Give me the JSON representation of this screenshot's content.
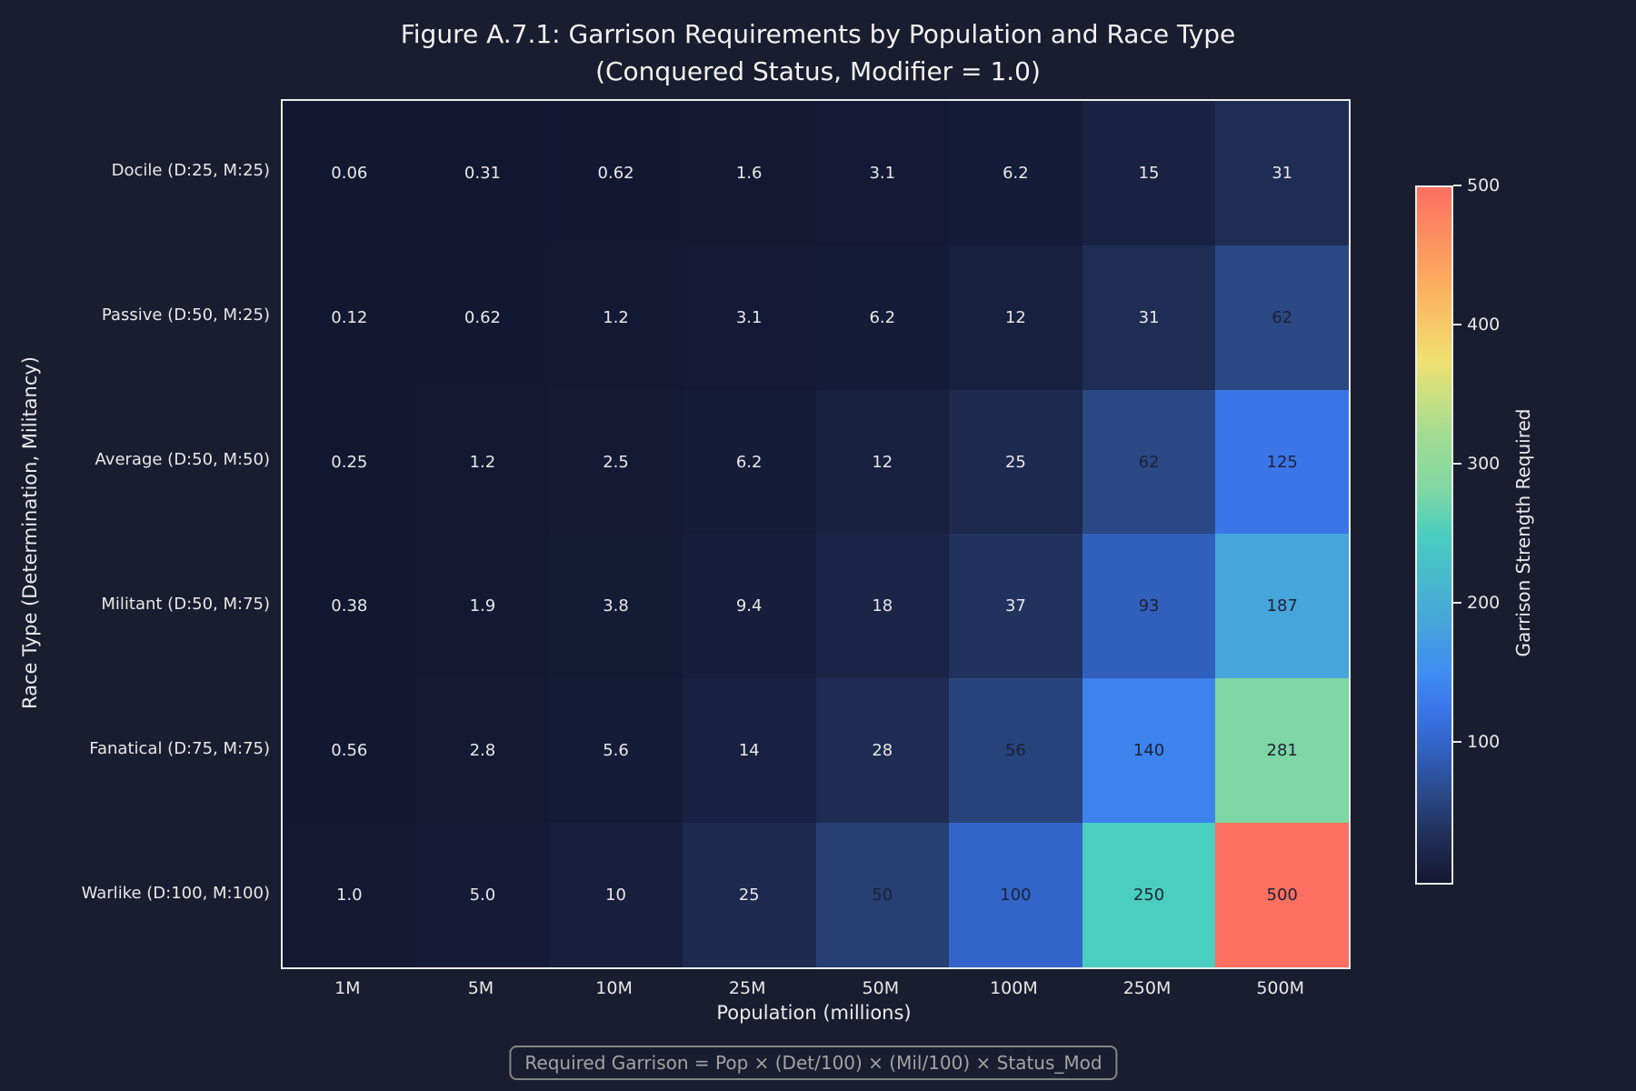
{
  "title": {
    "line1": "Figure A.7.1: Garrison Requirements by Population and Race Type",
    "line2": "(Conquered Status, Modifier = 1.0)"
  },
  "chart_data": {
    "type": "heatmap",
    "x_categories": [
      "1M",
      "5M",
      "10M",
      "25M",
      "50M",
      "100M",
      "250M",
      "500M"
    ],
    "y_categories": [
      "Docile (D:25, M:25)",
      "Passive (D:50, M:25)",
      "Average (D:50, M:50)",
      "Militant (D:50, M:75)",
      "Fanatical (D:75, M:75)",
      "Warlike (D:100, M:100)"
    ],
    "values": [
      [
        0.06,
        0.31,
        0.62,
        1.6,
        3.1,
        6.2,
        15,
        31
      ],
      [
        0.12,
        0.62,
        1.2,
        3.1,
        6.2,
        12,
        31,
        62
      ],
      [
        0.25,
        1.2,
        2.5,
        6.2,
        12,
        25,
        62,
        125
      ],
      [
        0.38,
        1.9,
        3.8,
        9.4,
        18,
        37,
        93,
        187
      ],
      [
        0.56,
        2.8,
        5.6,
        14,
        28,
        56,
        140,
        281
      ],
      [
        1.0,
        5.0,
        10,
        25,
        50,
        100,
        250,
        500
      ]
    ],
    "cell_labels": [
      [
        "0.06",
        "0.31",
        "0.62",
        "1.6",
        "3.1",
        "6.2",
        "15",
        "31"
      ],
      [
        "0.12",
        "0.62",
        "1.2",
        "3.1",
        "6.2",
        "12",
        "31",
        "62"
      ],
      [
        "0.25",
        "1.2",
        "2.5",
        "6.2",
        "12",
        "25",
        "62",
        "125"
      ],
      [
        "0.38",
        "1.9",
        "3.8",
        "9.4",
        "18",
        "37",
        "93",
        "187"
      ],
      [
        "0.56",
        "2.8",
        "5.6",
        "14",
        "28",
        "56",
        "140",
        "281"
      ],
      [
        "1.0",
        "5.0",
        "10",
        "25",
        "50",
        "100",
        "250",
        "500"
      ]
    ],
    "xlabel": "Population (millions)",
    "ylabel": "Race Type (Determination, Militancy)",
    "grid": false,
    "colorbar": {
      "label": "Garrison Strength Required",
      "ticks": [
        "100",
        "200",
        "300",
        "400",
        "500"
      ],
      "vmin": 0,
      "vmax": 500
    }
  },
  "footer": {
    "formula": "Required Garrison = Pop × (Det/100) × (Mil/100) × Status_Mod"
  },
  "colors": {
    "background": "#1a1d2f",
    "plot_border": "#ececec",
    "text_primary": "#f2f2f2",
    "tick_text": "#e8e8e8",
    "footer_text": "#a3a3a3",
    "footer_border": "#858585",
    "cell_text_light": "#e8e8e8",
    "cell_text_dark": "#1d2236",
    "annotation_dark_threshold": 50,
    "colormap_stops": [
      [
        0.0,
        "#131831"
      ],
      [
        0.062,
        "#1f2d55"
      ],
      [
        0.124,
        "#2a4884"
      ],
      [
        0.2,
        "#3264c9"
      ],
      [
        0.25,
        "#3a76e8"
      ],
      [
        0.3,
        "#3f8cf2"
      ],
      [
        0.374,
        "#46a5da"
      ],
      [
        0.5,
        "#49cec0"
      ],
      [
        0.562,
        "#7ed7a4"
      ],
      [
        0.65,
        "#a5dd90"
      ],
      [
        0.75,
        "#efe170"
      ],
      [
        0.85,
        "#fcb35f"
      ],
      [
        1.0,
        "#fc6f61"
      ]
    ]
  }
}
